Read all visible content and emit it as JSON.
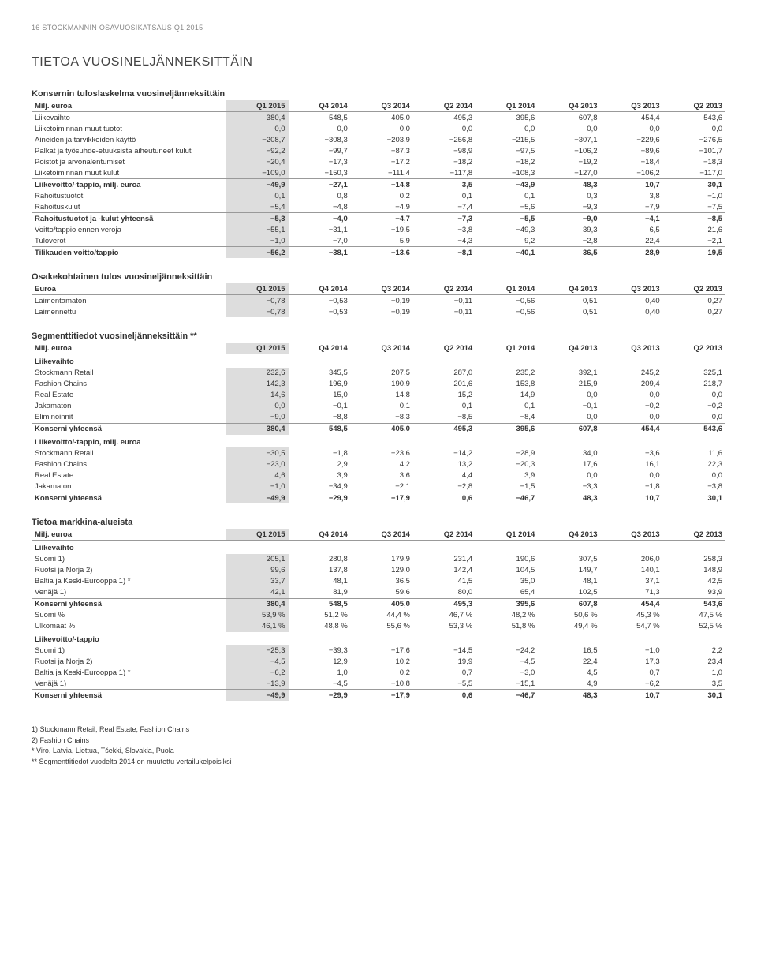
{
  "header": "16    STOCKMANNIN OSAVUOSIKATSAUS Q1 2015",
  "main_title": "TIETOA VUOSINELJÄNNEKSITTÄIN",
  "periods": [
    "Q1 2015",
    "Q4 2014",
    "Q3 2014",
    "Q2 2014",
    "Q1 2014",
    "Q4 2013",
    "Q3 2013",
    "Q2 2013"
  ],
  "table1": {
    "title": "Konsernin tuloslaskelma vuosineljänneksittäin",
    "unit": "Milj. euroa",
    "rows": [
      {
        "l": "Liikevaihto",
        "v": [
          "380,4",
          "548,5",
          "405,0",
          "495,3",
          "395,6",
          "607,8",
          "454,4",
          "543,6"
        ]
      },
      {
        "l": "Liiketoiminnan muut tuotot",
        "v": [
          "0,0",
          "0,0",
          "0,0",
          "0,0",
          "0,0",
          "0,0",
          "0,0",
          "0,0"
        ]
      },
      {
        "l": "Aineiden ja tarvikkeiden käyttö",
        "v": [
          "−208,7",
          "−308,3",
          "−203,9",
          "−256,8",
          "−215,5",
          "−307,1",
          "−229,6",
          "−276,5"
        ]
      },
      {
        "l": "Palkat ja työsuhde-etuuksista aiheutuneet kulut",
        "v": [
          "−92,2",
          "−99,7",
          "−87,3",
          "−98,9",
          "−97,5",
          "−106,2",
          "−89,6",
          "−101,7"
        ]
      },
      {
        "l": "Poistot ja arvonalentumiset",
        "v": [
          "−20,4",
          "−17,3",
          "−17,2",
          "−18,2",
          "−18,2",
          "−19,2",
          "−18,4",
          "−18,3"
        ]
      },
      {
        "l": "Liiketoiminnan muut kulut",
        "v": [
          "−109,0",
          "−150,3",
          "−111,4",
          "−117,8",
          "−108,3",
          "−127,0",
          "−106,2",
          "−117,0"
        ]
      },
      {
        "l": "Liikevoitto/-tappio, milj. euroa",
        "v": [
          "−49,9",
          "−27,1",
          "−14,8",
          "3,5",
          "−43,9",
          "48,3",
          "10,7",
          "30,1"
        ],
        "bold": true
      },
      {
        "l": "Rahoitustuotot",
        "v": [
          "0,1",
          "0,8",
          "0,2",
          "0,1",
          "0,1",
          "0,3",
          "3,8",
          "−1,0"
        ]
      },
      {
        "l": "Rahoituskulut",
        "v": [
          "−5,4",
          "−4,8",
          "−4,9",
          "−7,4",
          "−5,6",
          "−9,3",
          "−7,9",
          "−7,5"
        ]
      },
      {
        "l": "Rahoitustuotot ja -kulut yhteensä",
        "v": [
          "−5,3",
          "−4,0",
          "−4,7",
          "−7,3",
          "−5,5",
          "−9,0",
          "−4,1",
          "−8,5"
        ],
        "bold": true
      },
      {
        "l": "Voitto/tappio ennen veroja",
        "v": [
          "−55,1",
          "−31,1",
          "−19,5",
          "−3,8",
          "−49,3",
          "39,3",
          "6,5",
          "21,6"
        ]
      },
      {
        "l": "Tuloverot",
        "v": [
          "−1,0",
          "−7,0",
          "5,9",
          "−4,3",
          "9,2",
          "−2,8",
          "22,4",
          "−2,1"
        ]
      },
      {
        "l": "Tilikauden voitto/tappio",
        "v": [
          "−56,2",
          "−38,1",
          "−13,6",
          "−8,1",
          "−40,1",
          "36,5",
          "28,9",
          "19,5"
        ],
        "bold": true
      }
    ]
  },
  "table2": {
    "title": "Osakekohtainen tulos vuosineljänneksittäin",
    "unit": "Euroa",
    "rows": [
      {
        "l": "Laimentamaton",
        "v": [
          "−0,78",
          "−0,53",
          "−0,19",
          "−0,11",
          "−0,56",
          "0,51",
          "0,40",
          "0,27"
        ]
      },
      {
        "l": "Laimennettu",
        "v": [
          "−0,78",
          "−0,53",
          "−0,19",
          "−0,11",
          "−0,56",
          "0,51",
          "0,40",
          "0,27"
        ]
      }
    ]
  },
  "table3": {
    "title": "Segmenttitiedot vuosineljänneksittäin **",
    "unit": "Milj. euroa",
    "groups": [
      {
        "head": "Liikevaihto",
        "rows": [
          {
            "l": "Stockmann Retail",
            "v": [
              "232,6",
              "345,5",
              "207,5",
              "287,0",
              "235,2",
              "392,1",
              "245,2",
              "325,1"
            ]
          },
          {
            "l": "Fashion Chains",
            "v": [
              "142,3",
              "196,9",
              "190,9",
              "201,6",
              "153,8",
              "215,9",
              "209,4",
              "218,7"
            ]
          },
          {
            "l": "Real Estate",
            "v": [
              "14,6",
              "15,0",
              "14,8",
              "15,2",
              "14,9",
              "0,0",
              "0,0",
              "0,0"
            ]
          },
          {
            "l": "Jakamaton",
            "v": [
              "0,0",
              "−0,1",
              "0,1",
              "0,1",
              "0,1",
              "−0,1",
              "−0,2",
              "−0,2"
            ]
          },
          {
            "l": "Eliminoinnit",
            "v": [
              "−9,0",
              "−8,8",
              "−8,3",
              "−8,5",
              "−8,4",
              "0,0",
              "0,0",
              "0,0"
            ]
          },
          {
            "l": "Konserni yhteensä",
            "v": [
              "380,4",
              "548,5",
              "405,0",
              "495,3",
              "395,6",
              "607,8",
              "454,4",
              "543,6"
            ],
            "bold": true
          }
        ]
      },
      {
        "head": "Liikevoitto/-tappio, milj. euroa",
        "rows": [
          {
            "l": "Stockmann Retail",
            "v": [
              "−30,5",
              "−1,8",
              "−23,6",
              "−14,2",
              "−28,9",
              "34,0",
              "−3,6",
              "11,6"
            ]
          },
          {
            "l": "Fashion Chains",
            "v": [
              "−23,0",
              "2,9",
              "4,2",
              "13,2",
              "−20,3",
              "17,6",
              "16,1",
              "22,3"
            ]
          },
          {
            "l": "Real Estate",
            "v": [
              "4,6",
              "3,9",
              "3,6",
              "4,4",
              "3,9",
              "0,0",
              "0,0",
              "0,0"
            ]
          },
          {
            "l": "Jakamaton",
            "v": [
              "−1,0",
              "−34,9",
              "−2,1",
              "−2,8",
              "−1,5",
              "−3,3",
              "−1,8",
              "−3,8"
            ]
          },
          {
            "l": "Konserni yhteensä",
            "v": [
              "−49,9",
              "−29,9",
              "−17,9",
              "0,6",
              "−46,7",
              "48,3",
              "10,7",
              "30,1"
            ],
            "bold": true
          }
        ]
      }
    ]
  },
  "table4": {
    "title": "Tietoa markkina-alueista",
    "unit": "Milj. euroa",
    "groups": [
      {
        "head": "Liikevaihto",
        "rows": [
          {
            "l": "Suomi 1)",
            "v": [
              "205,1",
              "280,8",
              "179,9",
              "231,4",
              "190,6",
              "307,5",
              "206,0",
              "258,3"
            ]
          },
          {
            "l": "Ruotsi ja Norja 2)",
            "v": [
              "99,6",
              "137,8",
              "129,0",
              "142,4",
              "104,5",
              "149,7",
              "140,1",
              "148,9"
            ]
          },
          {
            "l": "Baltia ja Keski-Eurooppa 1) *",
            "v": [
              "33,7",
              "48,1",
              "36,5",
              "41,5",
              "35,0",
              "48,1",
              "37,1",
              "42,5"
            ]
          },
          {
            "l": "Venäjä 1)",
            "v": [
              "42,1",
              "81,9",
              "59,6",
              "80,0",
              "65,4",
              "102,5",
              "71,3",
              "93,9"
            ]
          },
          {
            "l": "Konserni yhteensä",
            "v": [
              "380,4",
              "548,5",
              "405,0",
              "495,3",
              "395,6",
              "607,8",
              "454,4",
              "543,6"
            ],
            "bold": true
          },
          {
            "l": "Suomi %",
            "v": [
              "53,9 %",
              "51,2 %",
              "44,4 %",
              "46,7 %",
              "48,2 %",
              "50,6 %",
              "45,3 %",
              "47,5 %"
            ]
          },
          {
            "l": "Ulkomaat %",
            "v": [
              "46,1 %",
              "48,8 %",
              "55,6 %",
              "53,3 %",
              "51,8 %",
              "49,4 %",
              "54,7 %",
              "52,5 %"
            ]
          }
        ]
      },
      {
        "head": "Liikevoitto/-tappio",
        "rows": [
          {
            "l": "Suomi 1)",
            "v": [
              "−25,3",
              "−39,3",
              "−17,6",
              "−14,5",
              "−24,2",
              "16,5",
              "−1,0",
              "2,2"
            ]
          },
          {
            "l": "Ruotsi ja Norja 2)",
            "v": [
              "−4,5",
              "12,9",
              "10,2",
              "19,9",
              "−4,5",
              "22,4",
              "17,3",
              "23,4"
            ]
          },
          {
            "l": "Baltia ja Keski-Eurooppa 1) *",
            "v": [
              "−6,2",
              "1,0",
              "0,2",
              "0,7",
              "−3,0",
              "4,5",
              "0,7",
              "1,0"
            ]
          },
          {
            "l": "Venäjä 1)",
            "v": [
              "−13,9",
              "−4,5",
              "−10,8",
              "−5,5",
              "−15,1",
              "4,9",
              "−6,2",
              "3,5"
            ]
          },
          {
            "l": "Konserni yhteensä",
            "v": [
              "−49,9",
              "−29,9",
              "−17,9",
              "0,6",
              "−46,7",
              "48,3",
              "10,7",
              "30,1"
            ],
            "bold": true
          }
        ]
      }
    ]
  },
  "footnotes": [
    "1) Stockmann Retail, Real Estate, Fashion Chains",
    "2) Fashion Chains",
    "* Viro, Latvia, Liettua, Tšekki, Slovakia, Puola",
    "** Segmenttitiedot vuodelta 2014 on muutettu vertailukelpoisiksi"
  ]
}
